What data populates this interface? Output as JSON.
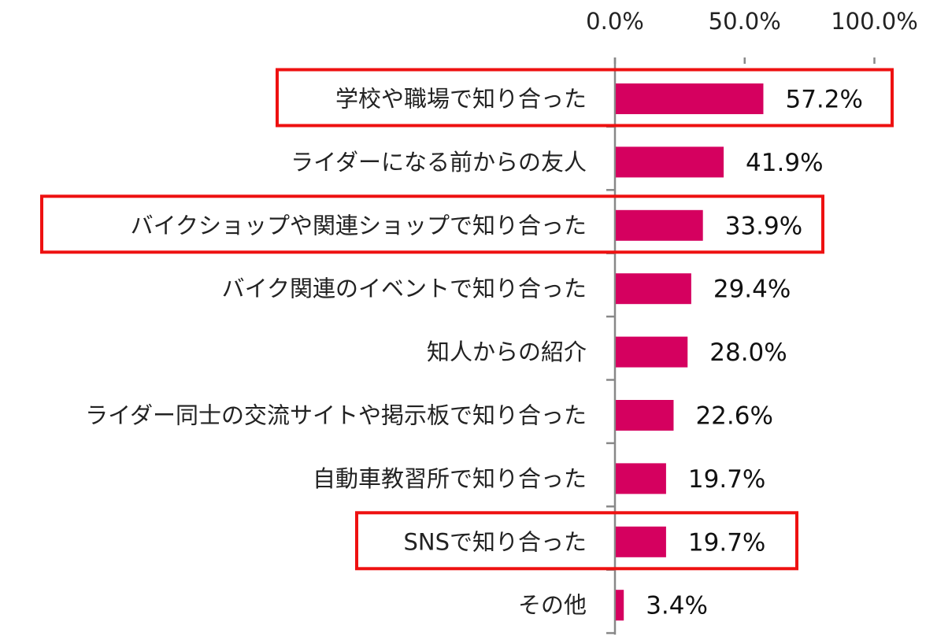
{
  "chart_data": {
    "type": "bar",
    "orientation": "horizontal",
    "categories": [
      "学校や職場で知り合った",
      "ライダーになる前からの友人",
      "バイクショップや関連ショップで知り合った",
      "バイク関連のイベントで知り合った",
      "知人からの紹介",
      "ライダー同士の交流サイトや掲示板で知り合った",
      "自動車教習所で知り合った",
      "SNSで知り合った",
      "その他"
    ],
    "values": [
      57.2,
      41.9,
      33.9,
      29.4,
      28.0,
      22.6,
      19.7,
      19.7,
      3.4
    ],
    "value_labels": [
      "57.2%",
      "41.9%",
      "33.9%",
      "29.4%",
      "28.0%",
      "22.6%",
      "19.7%",
      "19.7%",
      "3.4%"
    ],
    "highlighted": [
      0,
      2,
      7
    ],
    "xlim": [
      0,
      100
    ],
    "xticks": [
      0,
      50,
      100
    ],
    "xtick_labels": [
      "0.0%",
      "50.0%",
      "100.0%"
    ],
    "axis_position": "top",
    "grid": false,
    "title": "",
    "xlabel": "",
    "ylabel": "",
    "colors": {
      "bar": "#d5005f",
      "highlight": "#ee1111",
      "axis": "#888888"
    }
  }
}
